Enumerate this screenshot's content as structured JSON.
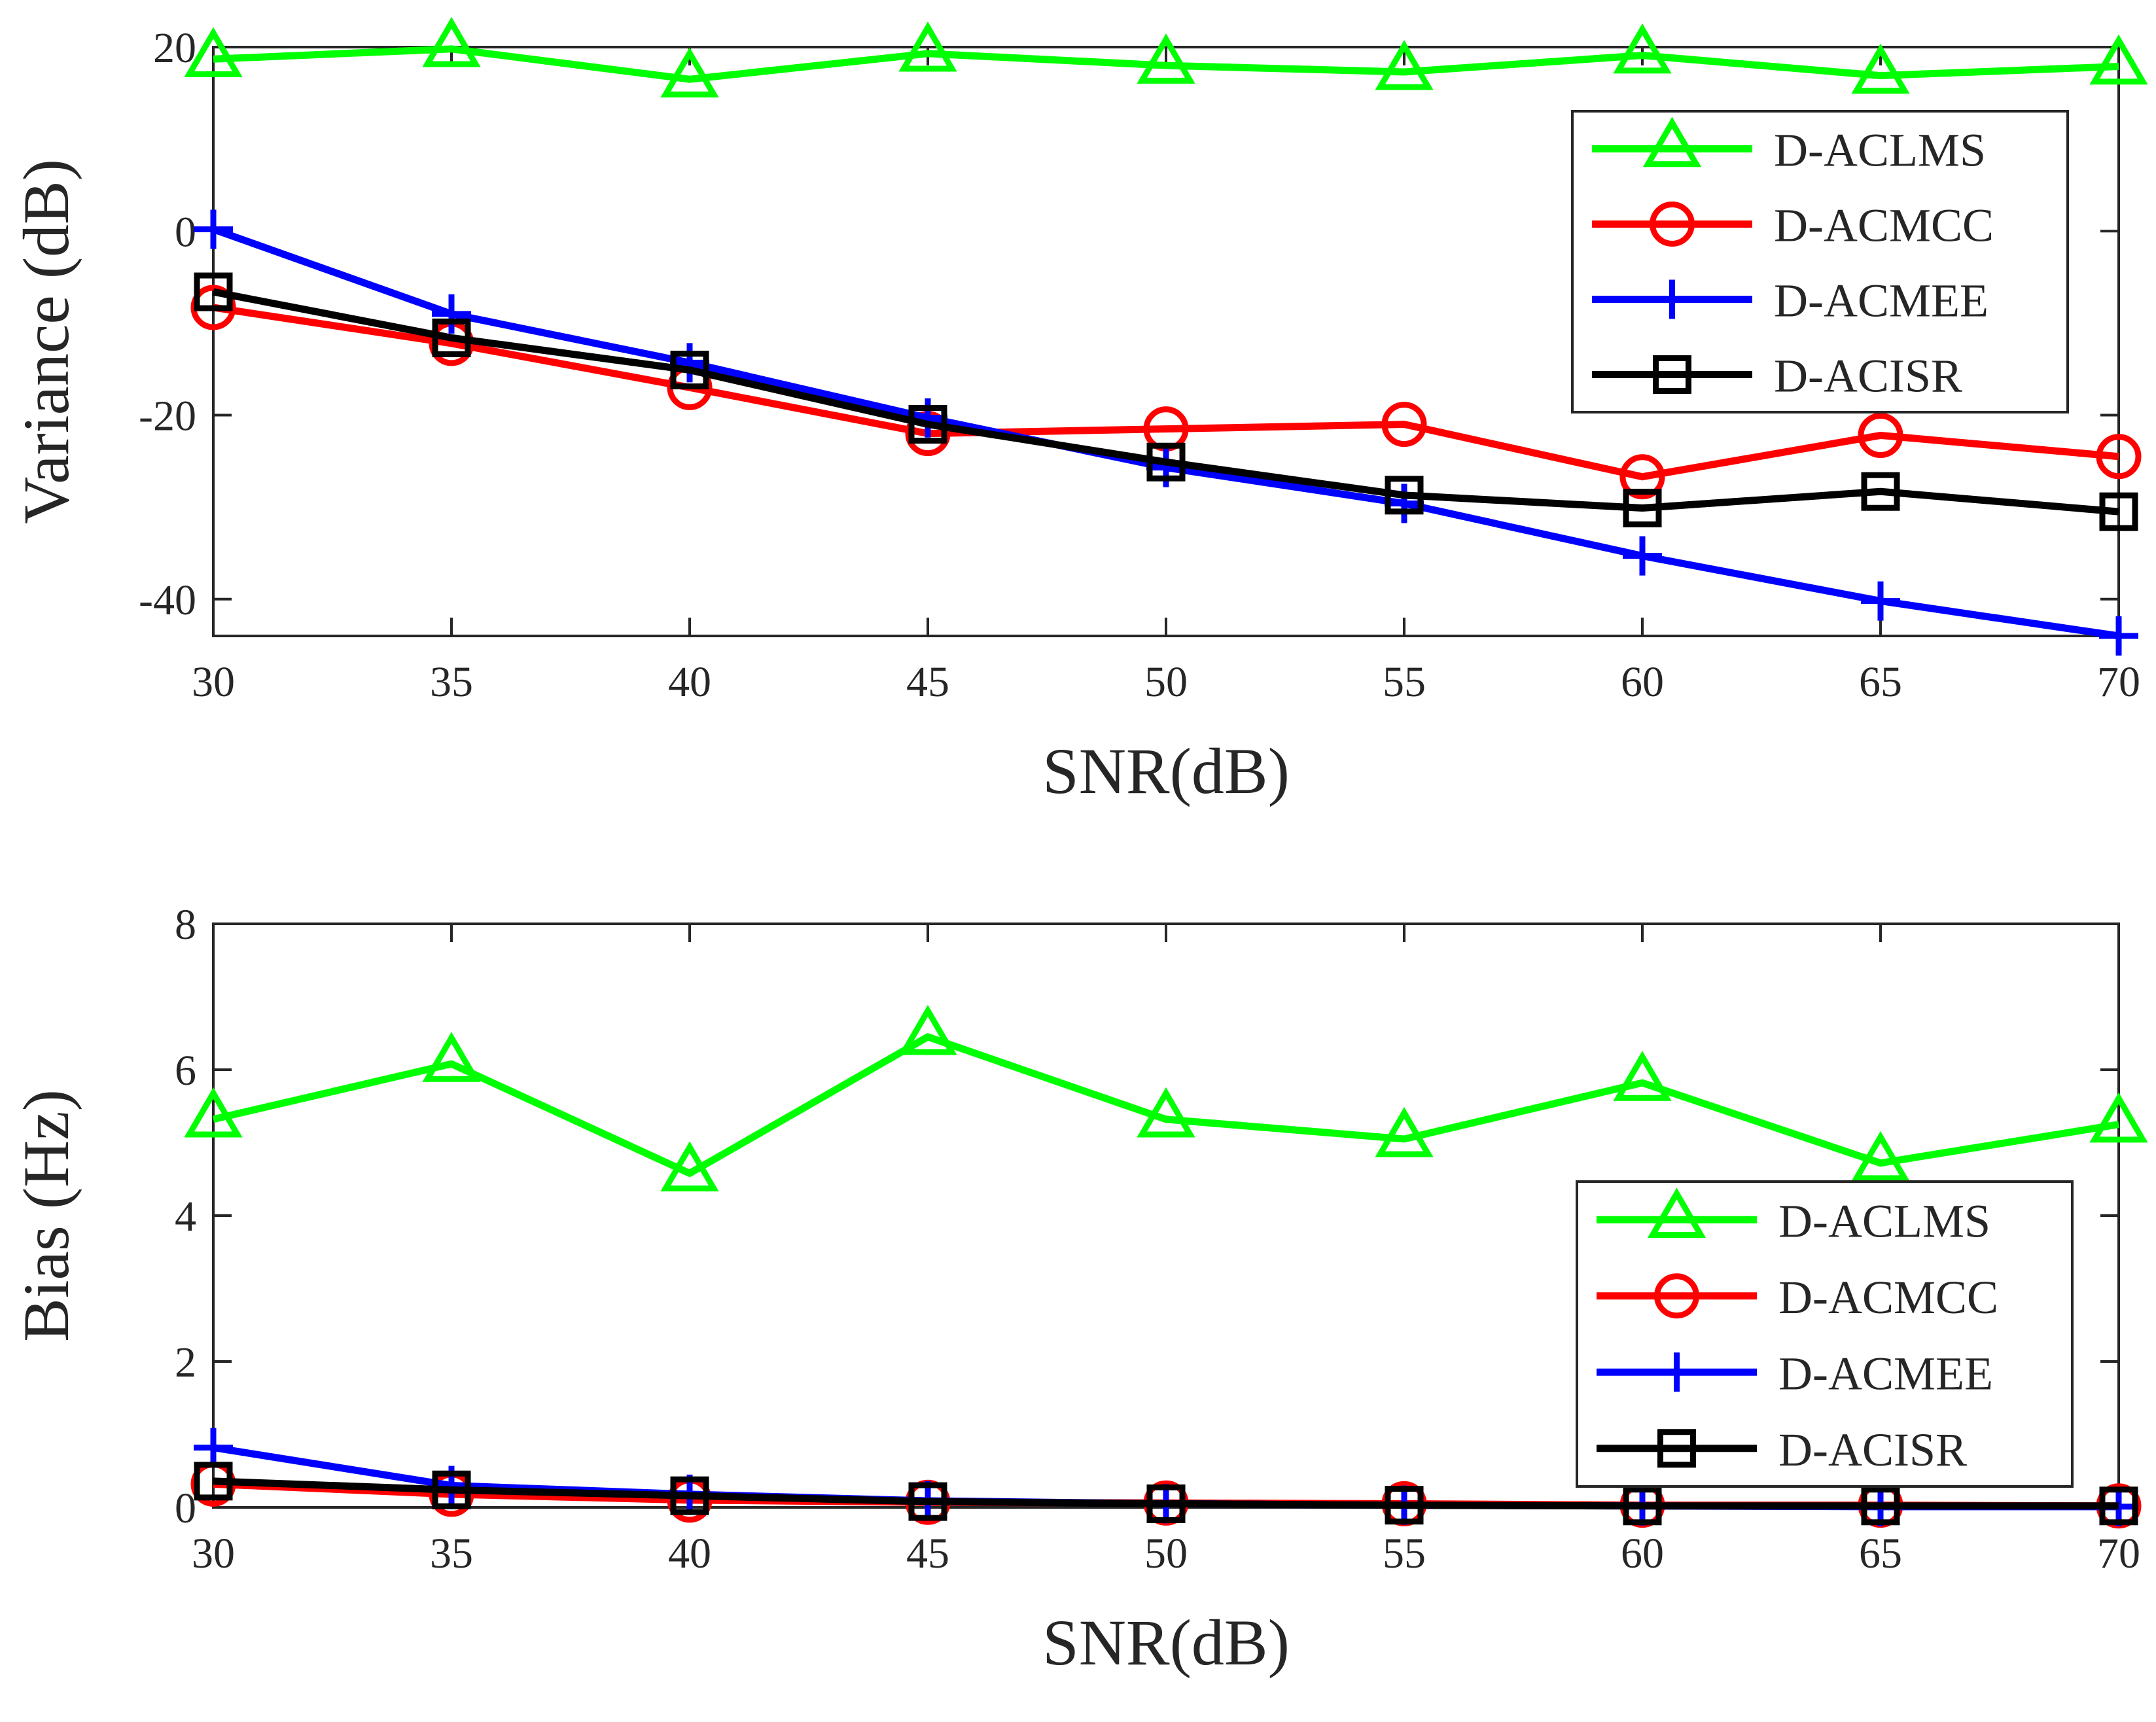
{
  "chart_data": [
    {
      "type": "line",
      "xlabel": "SNR(dB)",
      "ylabel": "Variance (dB)",
      "xlim": [
        30,
        70
      ],
      "ylim": [
        -44,
        20
      ],
      "xticks": [
        30,
        35,
        40,
        45,
        50,
        55,
        60,
        65,
        70
      ],
      "yticks": [
        -40,
        -20,
        0,
        20
      ],
      "legend_position": "top-right",
      "x": [
        30,
        35,
        40,
        45,
        50,
        55,
        60,
        65,
        70
      ],
      "series": [
        {
          "name": "D-ACLMS",
          "color": "#00ff00",
          "marker": "triangle",
          "values": [
            18.7,
            19.8,
            16.5,
            19.3,
            18.0,
            17.3,
            19.1,
            16.9,
            17.9
          ]
        },
        {
          "name": "D-ACMCC",
          "color": "#ff0000",
          "marker": "circle",
          "values": [
            -8.3,
            -12.2,
            -17.0,
            -22.0,
            -21.5,
            -21.0,
            -26.7,
            -22.2,
            -24.5
          ]
        },
        {
          "name": "D-ACMEE",
          "color": "#0000ff",
          "marker": "plus",
          "values": [
            0.2,
            -9.0,
            -14.3,
            -20.3,
            -25.7,
            -29.6,
            -35.3,
            -40.2,
            -44.0
          ]
        },
        {
          "name": "D-ACISR",
          "color": "#000000",
          "marker": "square",
          "values": [
            -6.6,
            -11.6,
            -15.1,
            -21.0,
            -25.1,
            -28.7,
            -30.1,
            -28.3,
            -30.5
          ]
        }
      ]
    },
    {
      "type": "line",
      "xlabel": "SNR(dB)",
      "ylabel": "Bias (Hz)",
      "xlim": [
        30,
        70
      ],
      "ylim": [
        0,
        8
      ],
      "xticks": [
        30,
        35,
        40,
        45,
        50,
        55,
        60,
        65,
        70
      ],
      "yticks": [
        0,
        2,
        4,
        6,
        8
      ],
      "legend_position": "bottom-right",
      "x": [
        30,
        35,
        40,
        45,
        50,
        55,
        60,
        65,
        70
      ],
      "series": [
        {
          "name": "D-ACLMS",
          "color": "#00ff00",
          "marker": "triangle",
          "values": [
            5.32,
            6.08,
            4.58,
            6.45,
            5.32,
            5.05,
            5.82,
            4.72,
            5.25
          ]
        },
        {
          "name": "D-ACMCC",
          "color": "#ff0000",
          "marker": "circle",
          "values": [
            0.32,
            0.18,
            0.1,
            0.07,
            0.06,
            0.05,
            0.03,
            0.03,
            0.02
          ]
        },
        {
          "name": "D-ACMEE",
          "color": "#0000ff",
          "marker": "plus",
          "values": [
            0.82,
            0.3,
            0.18,
            0.09,
            0.05,
            0.03,
            0.02,
            0.01,
            0.01
          ]
        },
        {
          "name": "D-ACISR",
          "color": "#000000",
          "marker": "square",
          "values": [
            0.36,
            0.24,
            0.16,
            0.08,
            0.05,
            0.03,
            0.02,
            0.02,
            0.02
          ]
        }
      ]
    }
  ]
}
